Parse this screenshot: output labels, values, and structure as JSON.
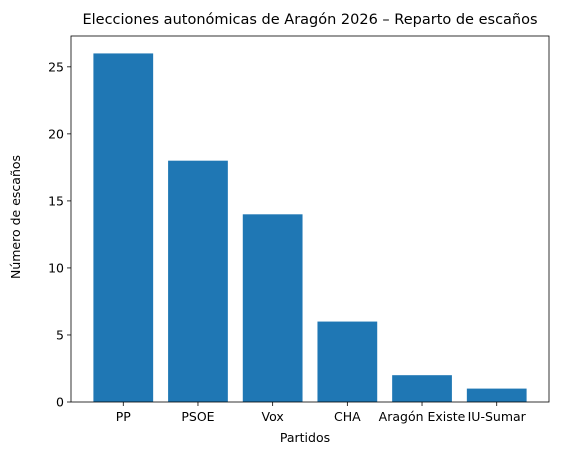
{
  "chart_data": {
    "type": "bar",
    "title": "Elecciones autonómicas de Aragón 2026 – Reparto de escaños",
    "xlabel": "Partidos",
    "ylabel": "Número de escaños",
    "categories": [
      "PP",
      "PSOE",
      "Vox",
      "CHA",
      "Aragón Existe",
      "IU-Sumar"
    ],
    "values": [
      26,
      18,
      14,
      6,
      2,
      1
    ],
    "ylim": [
      0,
      27.3
    ],
    "yticks": [
      0,
      5,
      10,
      15,
      20,
      25
    ],
    "grid": false,
    "bar_color": "#1f77b4"
  }
}
